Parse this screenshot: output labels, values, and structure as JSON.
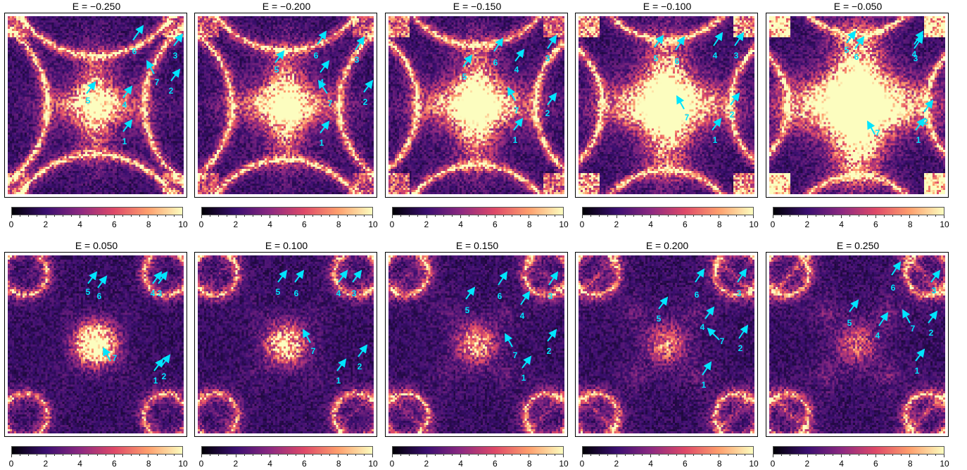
{
  "colorscale": {
    "min": 0,
    "max": 10,
    "tick_labels": [
      "0",
      "2",
      "4",
      "6",
      "8",
      "10"
    ],
    "colors": [
      "#000004",
      "#3b0f70",
      "#8c2981",
      "#de4968",
      "#fe9f6d",
      "#fcfdbf"
    ]
  },
  "arrow_color": "#00e5ff",
  "panel_background": "#1a0b2e",
  "chart_data": [
    {
      "type": "heatmap",
      "title": "E = −0.250",
      "energy": -0.25,
      "arrow_labels": [
        "1",
        "2",
        "3",
        "4",
        "5",
        "6",
        "7"
      ]
    },
    {
      "type": "heatmap",
      "title": "E = −0.200",
      "energy": -0.2,
      "arrow_labels": [
        "1",
        "2",
        "3",
        "4",
        "5",
        "6",
        "7"
      ]
    },
    {
      "type": "heatmap",
      "title": "E = −0.150",
      "energy": -0.15,
      "arrow_labels": [
        "1",
        "2",
        "3",
        "4",
        "5",
        "6",
        "7"
      ]
    },
    {
      "type": "heatmap",
      "title": "E = −0.100",
      "energy": -0.1,
      "arrow_labels": [
        "1",
        "2",
        "3",
        "4",
        "5",
        "6",
        "7"
      ]
    },
    {
      "type": "heatmap",
      "title": "E = −0.050",
      "energy": -0.05,
      "arrow_labels": [
        "1",
        "2",
        "3",
        "4",
        "5",
        "6",
        "7"
      ]
    },
    {
      "type": "heatmap",
      "title": "E = 0.050",
      "energy": 0.05,
      "arrow_labels": [
        "1",
        "2",
        "3",
        "4",
        "5",
        "6",
        "7"
      ]
    },
    {
      "type": "heatmap",
      "title": "E = 0.100",
      "energy": 0.1,
      "arrow_labels": [
        "1",
        "2",
        "3",
        "4",
        "5",
        "6",
        "7"
      ]
    },
    {
      "type": "heatmap",
      "title": "E = 0.150",
      "energy": 0.15,
      "arrow_labels": [
        "1",
        "2",
        "3",
        "4",
        "5",
        "6",
        "7"
      ]
    },
    {
      "type": "heatmap",
      "title": "E = 0.200",
      "energy": 0.2,
      "arrow_labels": [
        "1",
        "2",
        "3",
        "4",
        "5",
        "6",
        "7"
      ]
    },
    {
      "type": "heatmap",
      "title": "E = 0.250",
      "energy": 0.25,
      "arrow_labels": [
        "1",
        "2",
        "3",
        "4",
        "5",
        "6",
        "7"
      ]
    }
  ]
}
